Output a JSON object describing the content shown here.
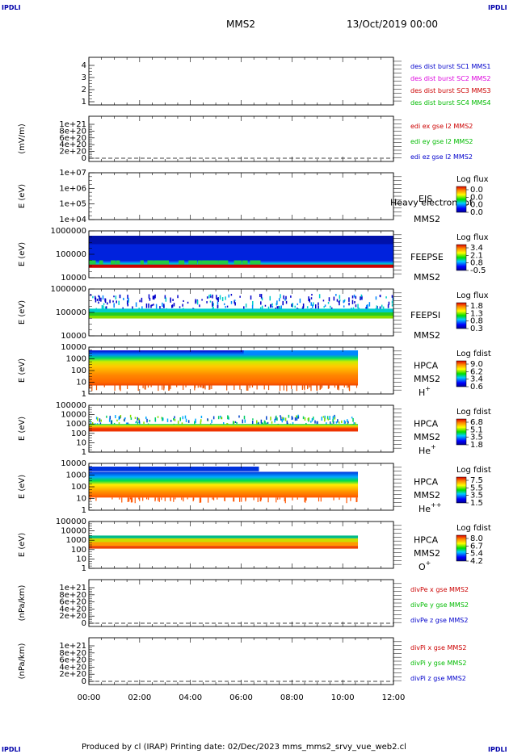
{
  "corners": {
    "tl": "IPDLI",
    "tr": "IPDLI",
    "bl": "IPDLI",
    "br": "IPDLI"
  },
  "header": {
    "spacecraft": "MMS2",
    "datetime": "13/Oct/2019 00:00"
  },
  "footer": "Produced by cl (IRAP)   Printing date: 02/Dec/2023   mms_mms2_srvy_vue_web2.cl",
  "colors": {
    "black": "#000000",
    "blue": "#0000cc",
    "magenta": "#dd00dd",
    "red": "#cc0000",
    "green": "#00bb00"
  },
  "chart_data": {
    "type": "multi-panel",
    "xlabels": [
      "00:00",
      "02:00",
      "04:00",
      "06:00",
      "08:00",
      "10:00",
      "12:00"
    ],
    "xrange_hours": [
      0,
      12
    ],
    "panels": [
      {
        "id": "p1",
        "type": "line",
        "yticks": [
          "1",
          "2",
          "3",
          "4"
        ],
        "legend": [
          {
            "text": "des dist burst SC1 MMS1",
            "color": "#0000cc"
          },
          {
            "text": "des dist burst SC2 MMS2",
            "color": "#dd00dd"
          },
          {
            "text": "des dist burst SC3 MMS3",
            "color": "#cc0000"
          },
          {
            "text": "des dist burst SC4 MMS4",
            "color": "#00bb00"
          }
        ]
      },
      {
        "id": "p2",
        "type": "line",
        "ylabel": "(mV/m)",
        "yticks": [
          "0",
          "2e+20",
          "4e+20",
          "6e+20",
          "8e+20",
          "1e+21"
        ],
        "legend": [
          {
            "text": "edi ex gse l2 MMS2",
            "color": "#cc0000"
          },
          {
            "text": "edi ey gse l2 MMS2",
            "color": "#00bb00"
          },
          {
            "text": "edi ez gse l2 MMS2",
            "color": "#0000cc"
          }
        ]
      },
      {
        "id": "p3",
        "type": "heatmap",
        "ylabel": "E (eV)",
        "yticks": [
          "1e+04",
          "1e+05",
          "1e+06",
          "1e+07"
        ],
        "labels": [
          "EIS",
          "MMS2"
        ],
        "overlay": "Heavy electron tof",
        "cbar": {
          "title": "Log flux",
          "ticks": [
            "0.0",
            "0.0",
            "0.0",
            "0.0"
          ]
        }
      },
      {
        "id": "p4",
        "type": "heatmap",
        "ylabel": "E (eV)",
        "yticks": [
          "10000",
          "100000",
          "1000000"
        ],
        "labels": [
          "FEEPSE",
          "MMS2"
        ],
        "cbar": {
          "title": "Log flux",
          "ticks": [
            "3.4",
            "2.1",
            "0.8",
            "-0.5"
          ]
        }
      },
      {
        "id": "p5",
        "type": "heatmap",
        "ylabel": "E (eV)",
        "yticks": [
          "10000",
          "100000",
          "1000000"
        ],
        "labels": [
          "FEEPSI",
          "MMS2"
        ],
        "cbar": {
          "title": "Log flux",
          "ticks": [
            "1.8",
            "1.3",
            "0.8",
            "0.3"
          ]
        }
      },
      {
        "id": "p6",
        "type": "heatmap",
        "ylabel": "E (eV)",
        "yticks": [
          "1",
          "10",
          "100",
          "1000",
          "10000"
        ],
        "labels": [
          "HPCA",
          "MMS2"
        ],
        "species": "H",
        "sup": "+",
        "cbar": {
          "title": "Log fdist",
          "ticks": [
            "9.0",
            "6.2",
            "3.4",
            "0.6"
          ]
        }
      },
      {
        "id": "p7",
        "type": "heatmap",
        "ylabel": "E (eV)",
        "yticks": [
          "1",
          "10",
          "100",
          "1000",
          "10000",
          "100000"
        ],
        "labels": [
          "HPCA",
          "MMS2"
        ],
        "species": "He",
        "sup": "+",
        "cbar": {
          "title": "Log fdist",
          "ticks": [
            "6.8",
            "5.1",
            "3.5",
            "1.8"
          ]
        }
      },
      {
        "id": "p8",
        "type": "heatmap",
        "ylabel": "E (eV)",
        "yticks": [
          "1",
          "10",
          "100",
          "1000",
          "10000"
        ],
        "labels": [
          "HPCA",
          "MMS2"
        ],
        "species": "He",
        "sup": "++",
        "cbar": {
          "title": "Log fdist",
          "ticks": [
            "7.5",
            "5.5",
            "3.5",
            "1.5"
          ]
        }
      },
      {
        "id": "p9",
        "type": "heatmap",
        "ylabel": "E (eV)",
        "yticks": [
          "1",
          "10",
          "100",
          "1000",
          "10000",
          "100000"
        ],
        "labels": [
          "HPCA",
          "MMS2"
        ],
        "species": "O",
        "sup": "+",
        "cbar": {
          "title": "Log fdist",
          "ticks": [
            "8.0",
            "6.7",
            "5.4",
            "4.2"
          ]
        }
      },
      {
        "id": "p10",
        "type": "line",
        "ylabel": "(nPa/km)",
        "yticks": [
          "0",
          "2e+20",
          "4e+20",
          "6e+20",
          "8e+20",
          "1e+21"
        ],
        "legend": [
          {
            "text": "divPe x gse MMS2",
            "color": "#cc0000"
          },
          {
            "text": "divPe y gse MMS2",
            "color": "#00bb00"
          },
          {
            "text": "divPe z gse MMS2",
            "color": "#0000cc"
          }
        ]
      },
      {
        "id": "p11",
        "type": "line",
        "ylabel": "(nPa/km)",
        "yticks": [
          "0",
          "2e+20",
          "4e+20",
          "6e+20",
          "8e+20",
          "1e+21"
        ],
        "legend": [
          {
            "text": "divPi x gse MMS2",
            "color": "#cc0000"
          },
          {
            "text": "divPi y gse MMS2",
            "color": "#00bb00"
          },
          {
            "text": "divPi z gse MMS2",
            "color": "#0000cc"
          }
        ]
      }
    ]
  }
}
